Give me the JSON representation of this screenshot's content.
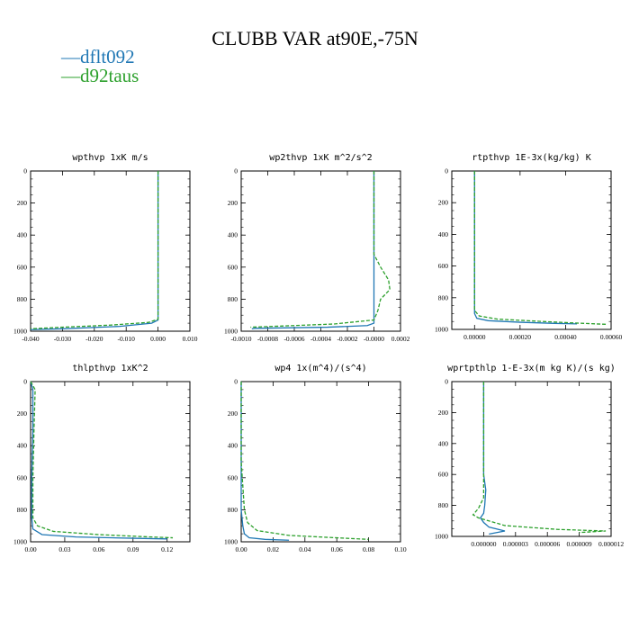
{
  "figure": {
    "title": "CLUBB VAR at90E,-75N"
  },
  "legend": [
    {
      "name": "dflt092",
      "color": "#1f77b4",
      "style": "solid"
    },
    {
      "name": "d92taus",
      "color": "#2ca02c",
      "style": "dashed"
    }
  ],
  "chart_data": [
    {
      "type": "line",
      "title": "wpthvp 1xK m/s",
      "ylim": [
        1000,
        0
      ],
      "xlim": [
        -0.04,
        0.01
      ],
      "xticks": [
        -0.04,
        -0.03,
        -0.02,
        -0.01,
        0.0,
        0.01
      ],
      "xtick_labels": [
        "-0.040",
        "-0.030",
        "-0.020",
        "-0.010",
        "0.000",
        "0.010"
      ],
      "yticks": [
        0,
        200,
        400,
        600,
        800,
        1000
      ],
      "ytick_labels": [
        "0",
        "200",
        "400",
        "600",
        "800",
        "1000"
      ],
      "series": [
        {
          "name": "dflt092",
          "points": [
            [
              0.0,
              0
            ],
            [
              0.0,
              400
            ],
            [
              0.0,
              800
            ],
            [
              0.0,
              930
            ],
            [
              -0.002,
              950
            ],
            [
              -0.012,
              970
            ],
            [
              -0.03,
              985
            ],
            [
              -0.04,
              990
            ]
          ]
        },
        {
          "name": "d92taus",
          "points": [
            [
              0.0,
              0
            ],
            [
              0.0,
              400
            ],
            [
              0.0,
              800
            ],
            [
              0.0,
              925
            ],
            [
              -0.003,
              945
            ],
            [
              -0.015,
              962
            ],
            [
              -0.03,
              975
            ],
            [
              -0.04,
              985
            ]
          ]
        }
      ]
    },
    {
      "type": "line",
      "title": "wp2thvp 1xK m^2/s^2",
      "ylim": [
        1000,
        0
      ],
      "xlim": [
        -0.001,
        0.0002
      ],
      "xticks": [
        -0.001,
        -0.0008,
        -0.0006,
        -0.0004,
        -0.0002,
        0.0,
        0.0002
      ],
      "xtick_labels": [
        "-0.0010",
        "-0.0008",
        "-0.0006",
        "-0.0004",
        "-0.0002",
        "-0.0000",
        "0.0002"
      ],
      "yticks": [
        0,
        200,
        400,
        600,
        800,
        1000
      ],
      "ytick_labels": [
        "0",
        "200",
        "400",
        "600",
        "800",
        "1000"
      ],
      "series": [
        {
          "name": "dflt092",
          "points": [
            [
              0.0,
              0
            ],
            [
              0.0,
              500
            ],
            [
              0.0,
              900
            ],
            [
              0.0,
              950
            ],
            [
              -5e-05,
              965
            ],
            [
              -0.00035,
              975
            ],
            [
              -0.0009,
              982
            ],
            [
              -0.00092,
              985
            ]
          ]
        },
        {
          "name": "d92taus",
          "points": [
            [
              0.0,
              0
            ],
            [
              0.0,
              520
            ],
            [
              5e-05,
              600
            ],
            [
              0.00011,
              680
            ],
            [
              0.00012,
              740
            ],
            [
              5e-05,
              800
            ],
            [
              3e-05,
              870
            ],
            [
              0.0,
              930
            ],
            [
              -0.0003,
              955
            ],
            [
              -0.0007,
              968
            ],
            [
              -0.00093,
              975
            ]
          ]
        }
      ]
    },
    {
      "type": "line",
      "title": "rtpthvp 1E-3x(kg/kg) K",
      "ylim": [
        1000,
        0
      ],
      "xlim": [
        -0.0001,
        0.0006
      ],
      "xticks": [
        0.0,
        0.0002,
        0.0004,
        0.0006
      ],
      "xtick_labels": [
        "0.00000",
        "0.00020",
        "0.00040",
        "0.00060"
      ],
      "yticks": [
        0,
        200,
        400,
        600,
        800,
        1000
      ],
      "ytick_labels": [
        "0",
        "200",
        "400",
        "600",
        "800",
        "1000"
      ],
      "series": [
        {
          "name": "dflt092",
          "points": [
            [
              0.0,
              0
            ],
            [
              0.0,
              400
            ],
            [
              0.0,
              800
            ],
            [
              0.0,
              900
            ],
            [
              1e-05,
              930
            ],
            [
              6e-05,
              945
            ],
            [
              0.0002,
              955
            ],
            [
              0.00035,
              962
            ],
            [
              0.00045,
              965
            ]
          ]
        },
        {
          "name": "d92taus",
          "points": [
            [
              0.0,
              0
            ],
            [
              0.0,
              400
            ],
            [
              0.0,
              800
            ],
            [
              0.0,
              880
            ],
            [
              2e-05,
              915
            ],
            [
              0.0001,
              935
            ],
            [
              0.0003,
              950
            ],
            [
              0.00048,
              962
            ],
            [
              0.00058,
              968
            ]
          ]
        }
      ]
    },
    {
      "type": "line",
      "title": "thlpthvp 1xK^2",
      "ylim": [
        1000,
        0
      ],
      "xlim": [
        0.0,
        0.14
      ],
      "xticks": [
        0.0,
        0.03,
        0.06,
        0.09,
        0.12
      ],
      "xtick_labels": [
        "0.00",
        "0.03",
        "0.06",
        "0.09",
        "0.12"
      ],
      "yticks": [
        0,
        200,
        400,
        600,
        800,
        1000
      ],
      "ytick_labels": [
        "0",
        "200",
        "400",
        "600",
        "800",
        "1000"
      ],
      "series": [
        {
          "name": "dflt092",
          "points": [
            [
              0.0,
              0
            ],
            [
              0.002,
              50
            ],
            [
              0.002,
              300
            ],
            [
              0.001,
              600
            ],
            [
              0.001,
              850
            ],
            [
              0.002,
              920
            ],
            [
              0.01,
              955
            ],
            [
              0.04,
              970
            ],
            [
              0.09,
              978
            ],
            [
              0.12,
              982
            ]
          ]
        },
        {
          "name": "d92taus",
          "points": [
            [
              0.0,
              0
            ],
            [
              0.004,
              50
            ],
            [
              0.003,
              300
            ],
            [
              0.002,
              600
            ],
            [
              0.002,
              850
            ],
            [
              0.006,
              900
            ],
            [
              0.02,
              935
            ],
            [
              0.06,
              955
            ],
            [
              0.1,
              968
            ],
            [
              0.125,
              975
            ]
          ]
        }
      ]
    },
    {
      "type": "line",
      "title": "wp4 1x(m^4)/(s^4)",
      "ylim": [
        1000,
        0
      ],
      "xlim": [
        0.0,
        0.1
      ],
      "xticks": [
        0.0,
        0.02,
        0.04,
        0.06,
        0.08,
        0.1
      ],
      "xtick_labels": [
        "0.00",
        "0.02",
        "0.04",
        "0.06",
        "0.08",
        "0.10"
      ],
      "yticks": [
        0,
        200,
        400,
        600,
        800,
        1000
      ],
      "ytick_labels": [
        "0",
        "200",
        "400",
        "600",
        "800",
        "1000"
      ],
      "series": [
        {
          "name": "dflt092",
          "points": [
            [
              0.0,
              0
            ],
            [
              0.0,
              400
            ],
            [
              0.0,
              800
            ],
            [
              0.001,
              900
            ],
            [
              0.002,
              950
            ],
            [
              0.005,
              975
            ],
            [
              0.015,
              985
            ],
            [
              0.03,
              990
            ]
          ]
        },
        {
          "name": "d92taus",
          "points": [
            [
              0.0,
              0
            ],
            [
              0.0,
              500
            ],
            [
              0.001,
              650
            ],
            [
              0.002,
              800
            ],
            [
              0.004,
              880
            ],
            [
              0.01,
              930
            ],
            [
              0.03,
              960
            ],
            [
              0.06,
              975
            ],
            [
              0.08,
              985
            ]
          ]
        }
      ]
    },
    {
      "type": "line",
      "title": "wprtpthlp 1-E-3x(m kg K)/(s kg)",
      "ylim": [
        1000,
        0
      ],
      "xlim": [
        -3e-06,
        1.2e-05
      ],
      "xticks": [
        0.0,
        3e-06,
        6e-06,
        9e-06,
        1.2e-05
      ],
      "xtick_labels": [
        "0.000000",
        "0.000003",
        "0.000006",
        "0.000009",
        "0.000012"
      ],
      "yticks": [
        0,
        200,
        400,
        600,
        800,
        1000
      ],
      "ytick_labels": [
        "0",
        "200",
        "400",
        "600",
        "800",
        "1000"
      ],
      "series": [
        {
          "name": "dflt092",
          "points": [
            [
              0.0,
              0
            ],
            [
              0.0,
              400
            ],
            [
              0.0,
              600
            ],
            [
              2e-07,
              700
            ],
            [
              1e-07,
              800
            ],
            [
              0.0,
              850
            ],
            [
              -3e-07,
              880
            ],
            [
              0.0,
              910
            ],
            [
              5e-07,
              940
            ],
            [
              2e-06,
              965
            ],
            [
              5e-07,
              985
            ]
          ]
        },
        {
          "name": "d92taus",
          "points": [
            [
              0.0,
              0
            ],
            [
              0.0,
              400
            ],
            [
              0.0,
              600
            ],
            [
              0.0,
              750
            ],
            [
              -5e-07,
              820
            ],
            [
              -1e-06,
              860
            ],
            [
              -5e-07,
              880
            ],
            [
              5e-07,
              900
            ],
            [
              2e-06,
              930
            ],
            [
              7e-06,
              955
            ],
            [
              1.15e-05,
              965
            ],
            [
              9e-06,
              975
            ]
          ]
        }
      ]
    }
  ]
}
